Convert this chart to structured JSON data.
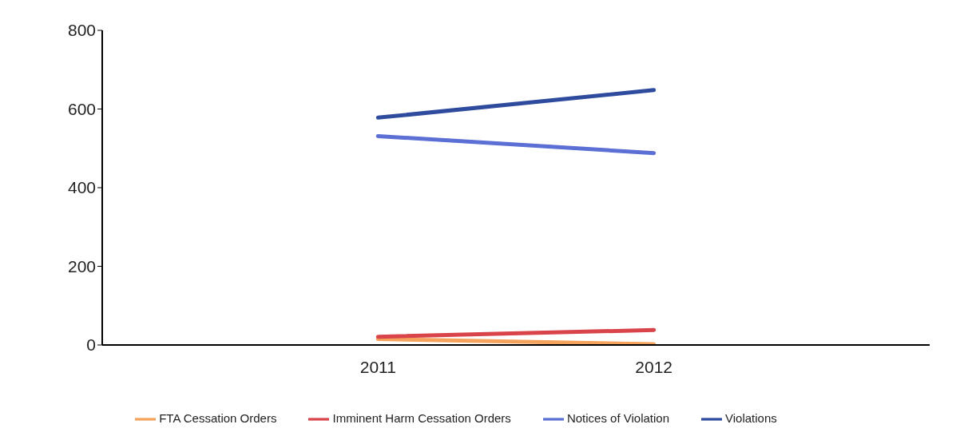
{
  "chart_data": {
    "type": "line",
    "categories": [
      null,
      "2011",
      "2012",
      null
    ],
    "series": [
      {
        "name": "Notices of Violation",
        "color": "#5b6fd4",
        "values": [
          null,
          531,
          488,
          null
        ]
      },
      {
        "name": "FTA Cessation Orders",
        "color": "#f4a25c",
        "values": [
          null,
          15,
          2,
          null
        ]
      },
      {
        "name": "Imminent Harm Cessation Orders",
        "color": "#d9434a",
        "values": [
          null,
          21,
          38,
          null
        ]
      },
      {
        "name": "Violations",
        "color": "#2f4b9e",
        "values": [
          null,
          578,
          648,
          null
        ]
      }
    ],
    "ylim": [
      0,
      800
    ],
    "yticks": [
      0,
      200,
      400,
      600,
      800
    ],
    "grid": false,
    "legend": "bottom",
    "marker": "none",
    "line_style": "solid"
  }
}
